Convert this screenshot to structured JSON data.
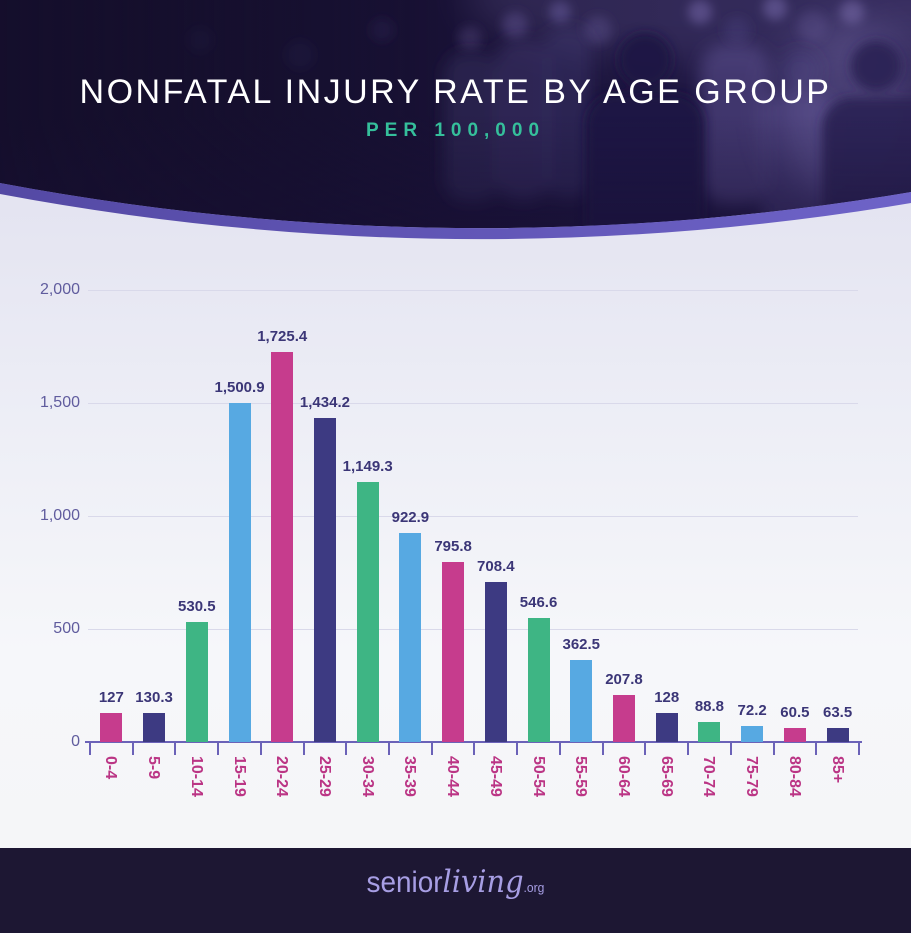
{
  "header": {
    "title": "NONFATAL INJURY RATE BY AGE GROUP",
    "subtitle": "PER 100,000"
  },
  "chart_data": {
    "type": "bar",
    "title": "Nonfatal Injury Rate by Age Group",
    "subtitle": "Per 100,000",
    "categories": [
      "0-4",
      "5-9",
      "10-14",
      "15-19",
      "20-24",
      "25-29",
      "30-34",
      "35-39",
      "40-44",
      "45-49",
      "50-54",
      "55-59",
      "60-64",
      "65-69",
      "70-74",
      "75-79",
      "80-84",
      "85+"
    ],
    "values": [
      127,
      130.3,
      530.5,
      1500.9,
      1725.4,
      1434.2,
      1149.3,
      922.9,
      795.8,
      708.4,
      546.6,
      362.5,
      207.8,
      128,
      88.8,
      72.2,
      60.5,
      63.5
    ],
    "value_labels": [
      "127",
      "130.3",
      "530.5",
      "1,500.9",
      "1,725.4",
      "1,434.2",
      "1,149.3",
      "922.9",
      "795.8",
      "708.4",
      "546.6",
      "362.5",
      "207.8",
      "128",
      "88.8",
      "72.2",
      "60.5",
      "63.5"
    ],
    "ylim": [
      0,
      2000
    ],
    "yticks": [
      {
        "value": 0,
        "label": "0"
      },
      {
        "value": 500,
        "label": "500"
      },
      {
        "value": 1000,
        "label": "1,000"
      },
      {
        "value": 1500,
        "label": "1,500"
      },
      {
        "value": 2000,
        "label": "2,000"
      }
    ],
    "grid": true,
    "legend": false,
    "bar_color_cycle": [
      "#c63c8d",
      "#3d3a82",
      "#3eb584",
      "#57a9e2"
    ],
    "axis_color": "#6b62b8",
    "value_label_color": "#3b3677",
    "xtick_label_color": "#bb3585",
    "ytick_label_color": "#605c9e"
  },
  "footer": {
    "logo_senior": "senior",
    "logo_living": "living",
    "logo_org": ".org"
  }
}
